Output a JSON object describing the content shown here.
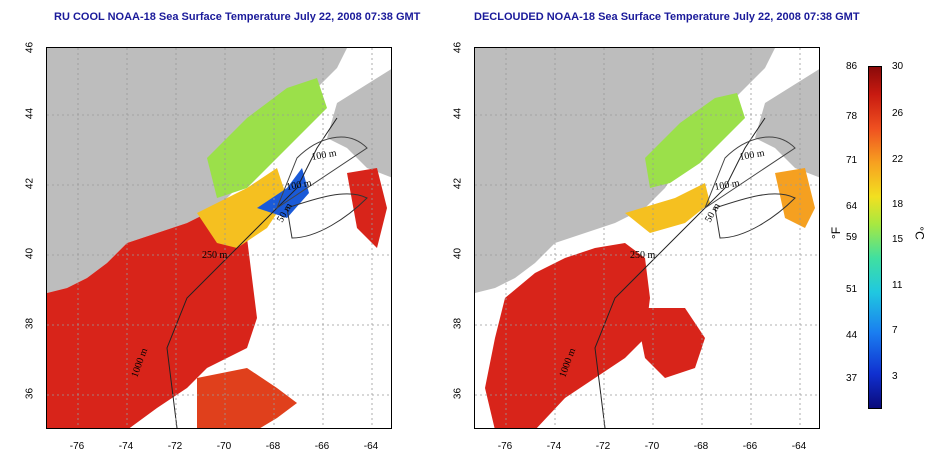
{
  "titles": {
    "left": "RU COOL NOAA-18 Sea Surface Temperature July 22, 2008 07:38 GMT",
    "right": "DECLOUDED NOAA-18 Sea Surface Temperature July 22, 2008 07:38 GMT"
  },
  "x_ticks": [
    "-76",
    "-74",
    "-72",
    "-70",
    "-68",
    "-66",
    "-64"
  ],
  "y_ticks": [
    "36",
    "38",
    "40",
    "42",
    "44",
    "46"
  ],
  "contour_labels": {
    "m100a": "100 m",
    "m100b": "100 m",
    "m50": "50 m",
    "m250": "250 m",
    "m1000": "1000 m"
  },
  "colorbar": {
    "f_label": "°F",
    "c_label": "°C",
    "f_ticks": [
      "86",
      "78",
      "71",
      "64",
      "59",
      "51",
      "44",
      "37"
    ],
    "c_ticks": [
      "30",
      "26",
      "22",
      "18",
      "15",
      "11",
      "7",
      "3"
    ]
  },
  "colors": {
    "land": "#bdbdbd",
    "warm": "#d8241a",
    "mid": "#f5c020",
    "cool": "#9be04a",
    "cold": "#1a5ad8"
  }
}
